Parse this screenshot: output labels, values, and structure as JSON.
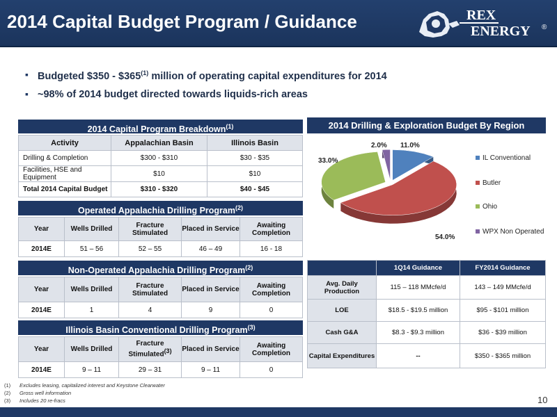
{
  "header": {
    "title": "2014 Capital Budget Program / Guidance",
    "logo_top": "REX",
    "logo_bottom": "ENERGY",
    "logo_mark": "®"
  },
  "bullets": [
    {
      "pre": "Budgeted $350 - $365",
      "sup": "(1)",
      "post": " million of operating capital expenditures for 2014"
    },
    {
      "pre": "~98% of 2014 budget directed towards liquids-rich areas",
      "sup": "",
      "post": ""
    }
  ],
  "breakdown": {
    "title": "2014 Capital Program Breakdown",
    "title_sup": "(1)",
    "headers": [
      "Activity",
      "Appalachian Basin",
      "Illinois Basin"
    ],
    "rows": [
      [
        "Drilling & Completion",
        "$300 - $310",
        "$30 - $35"
      ],
      [
        "Facilities, HSE and Equipment",
        "$10",
        "$10"
      ],
      [
        "Total 2014 Capital Budget",
        "$310 - $320",
        "$40 - $45"
      ]
    ]
  },
  "operated": {
    "title": "Operated Appalachia Drilling Program",
    "title_sup": "(2)",
    "headers": [
      "Year",
      "Wells Drilled",
      "Fracture Stimulated",
      "Placed in Service",
      "Awaiting Completion"
    ],
    "row": [
      "2014E",
      "51 – 56",
      "52 – 55",
      "46 – 49",
      "16 - 18"
    ]
  },
  "nonoperated": {
    "title": "Non-Operated Appalachia Drilling Program",
    "title_sup": "(2)",
    "headers": [
      "Year",
      "Wells Drilled",
      "Fracture Stimulated",
      "Placed in Service",
      "Awaiting Completion"
    ],
    "row": [
      "2014E",
      "1",
      "4",
      "9",
      "0"
    ]
  },
  "illinois": {
    "title": "Illinois Basin Conventional Drilling Program",
    "title_sup": "(3)",
    "headers": [
      "Year",
      "Wells Drilled",
      "Fracture Stimulated",
      "Placed in Service",
      "Awaiting Completion"
    ],
    "header_sup": "(3)",
    "row": [
      "2014E",
      "9 – 11",
      "29 – 31",
      "9 – 11",
      "0"
    ]
  },
  "chart_title": "2014 Drilling & Exploration Budget By Region",
  "chart_data": {
    "type": "pie",
    "title": "2014 Drilling & Exploration Budget By Region",
    "categories": [
      "IL Conventional",
      "Butler",
      "Ohio",
      "WPX Non Operated"
    ],
    "values": [
      11.0,
      54.0,
      33.0,
      2.0
    ],
    "labels": [
      "11.0%",
      "54.0%",
      "33.0%",
      "2.0%"
    ],
    "colors": [
      "#4f81bd",
      "#c0504d",
      "#9bbb59",
      "#8064a2"
    ],
    "legend": "right"
  },
  "guidance": {
    "headers": [
      "",
      "1Q14 Guidance",
      "FY2014 Guidance"
    ],
    "rows": [
      [
        "Avg. Daily Production",
        "115 – 118 MMcfe/d",
        "143 – 149 MMcfe/d"
      ],
      [
        "LOE",
        "$18.5 - $19.5 million",
        "$95 - $101 million"
      ],
      [
        "Cash G&A",
        "$8.3 - $9.3 million",
        "$36 - $39 million"
      ],
      [
        "Capital Expenditures",
        "--",
        "$350 - $365 million"
      ]
    ]
  },
  "footnotes": [
    {
      "num": "(1)",
      "text": "Excludes leasing, capitalized interest and Keystone Clearwater"
    },
    {
      "num": "(2)",
      "text": "Gross well information"
    },
    {
      "num": "(3)",
      "text": "Includes 20 re-fracs"
    }
  ],
  "page_number": "10"
}
